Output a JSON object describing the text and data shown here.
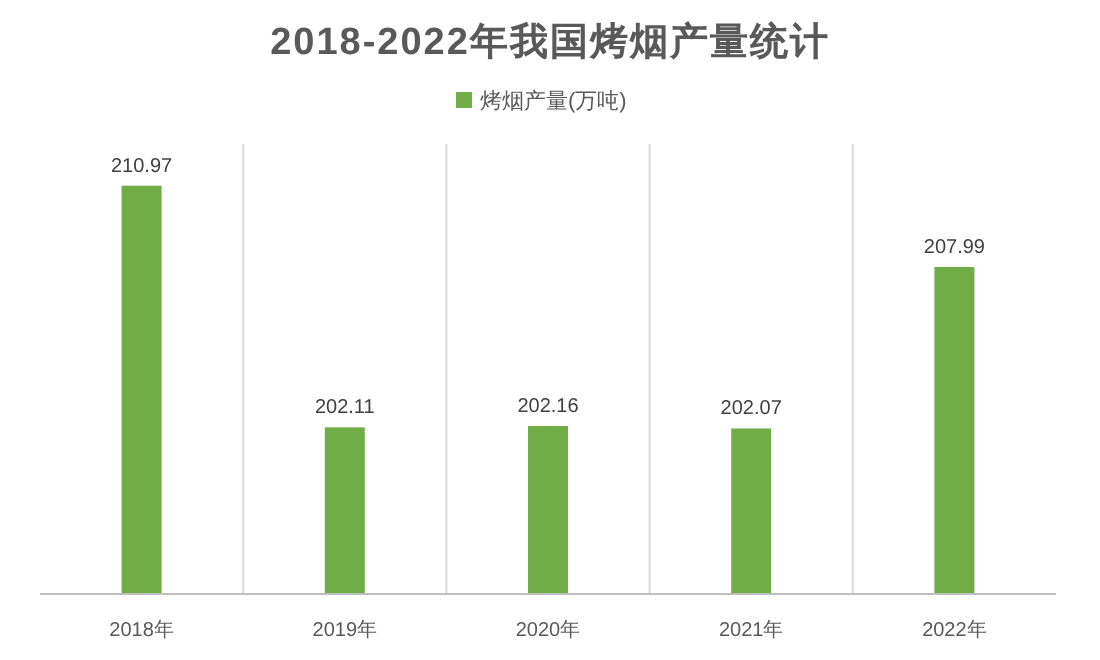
{
  "chart_data": {
    "type": "bar",
    "title": "2018-2022年我国烤烟产量统计",
    "categories": [
      "2018年",
      "2019年",
      "2020年",
      "2021年",
      "2022年"
    ],
    "series": [
      {
        "name": "烤烟产量(万吨)",
        "color": "#70ad47",
        "values": [
          210.97,
          202.11,
          202.16,
          202.07,
          207.99
        ]
      }
    ],
    "ylim": [
      196,
      212.5
    ],
    "tick_labels": "x",
    "data_labels": true,
    "legend": "top",
    "grid": "x"
  }
}
